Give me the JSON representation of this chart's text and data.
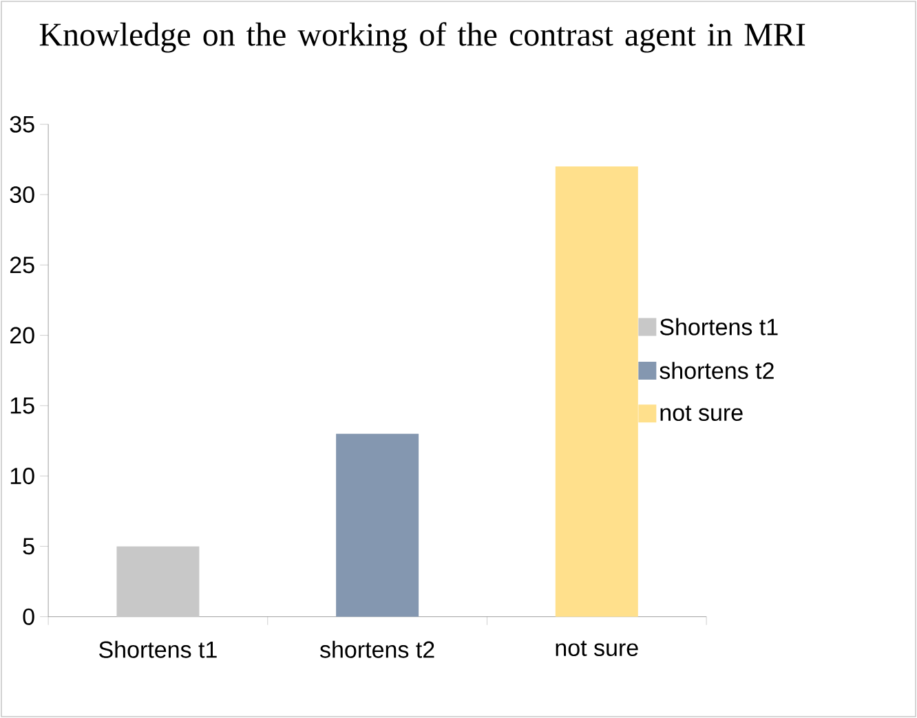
{
  "chart_data": {
    "type": "bar",
    "title": "Knowledge on the working of the contrast agent in MRI",
    "categories": [
      "Shortens t1",
      "shortens t2",
      "not sure"
    ],
    "series": [
      {
        "name": "Shortens t1",
        "color": "#c8c8c8",
        "values": [
          5,
          null,
          null
        ]
      },
      {
        "name": "shortens t2",
        "color": "#8497b0",
        "values": [
          null,
          13,
          null
        ]
      },
      {
        "name": "not sure",
        "color": "#ffe08c",
        "values": [
          null,
          null,
          32
        ]
      }
    ],
    "ylim": [
      0,
      35
    ],
    "yticks": [
      0,
      5,
      10,
      15,
      20,
      25,
      30,
      35
    ],
    "legend": "right"
  }
}
